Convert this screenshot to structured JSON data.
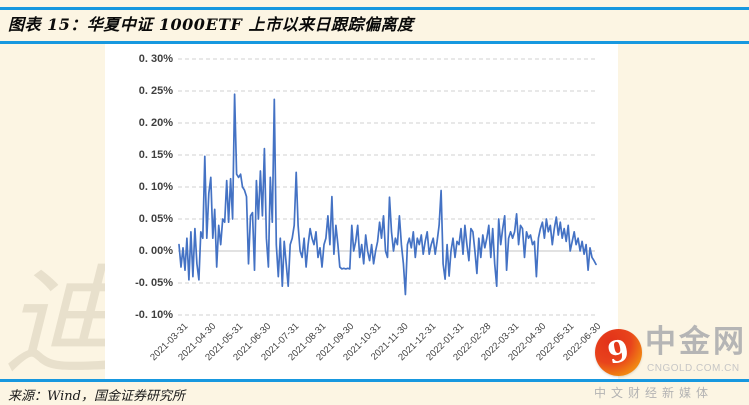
{
  "colors": {
    "accent_blue": "#1798DF",
    "page_background": "#FCF5E3",
    "panel_background": "#FFFFFF",
    "line_color": "#4472C4",
    "grid_color": "#D2D2D2",
    "zero_line_color": "#C6C6C6"
  },
  "header": {
    "title": "图表 15：华夏中证 1000ETF 上市以来日跟踪偏离度"
  },
  "source": {
    "label": "来源：Wind，国金证券研究所"
  },
  "watermark": {
    "text": "迪2022"
  },
  "logo": {
    "symbol": "9",
    "name": "中金网",
    "domain": "CNGOLD.COM.CN",
    "tagline": "中文财经新媒体",
    "red": "#E23219",
    "orange": "#F9A818"
  },
  "chart_data": {
    "type": "line",
    "title": "华夏中证1000ETF上市以来日跟踪偏离度",
    "unit": "%",
    "grid": "dashed horizontal",
    "legend_position": "none",
    "ylim": [
      -0.1,
      0.3
    ],
    "y_ticks": [
      {
        "label": "0. 30%",
        "value": 0.3
      },
      {
        "label": "0. 25%",
        "value": 0.25
      },
      {
        "label": "0. 20%",
        "value": 0.2
      },
      {
        "label": "0. 15%",
        "value": 0.15
      },
      {
        "label": "0. 10%",
        "value": 0.1
      },
      {
        "label": "0. 05%",
        "value": 0.05
      },
      {
        "label": "0. 00%",
        "value": 0.0
      },
      {
        "label": "-0. 05%",
        "value": -0.05
      },
      {
        "label": "-0. 10%",
        "value": -0.1
      }
    ],
    "x_ticks": [
      "2021-03-31",
      "2021-04-30",
      "2021-05-31",
      "2021-06-30",
      "2021-07-31",
      "2021-08-31",
      "2021-09-30",
      "2021-10-31",
      "2021-11-30",
      "2021-12-31",
      "2022-01-31",
      "2022-02-28",
      "2022-03-31",
      "2022-04-30",
      "2022-05-31",
      "2022-06-30"
    ],
    "series": [
      {
        "name": "日跟踪偏离度",
        "color": "#4472C4",
        "values": [
          0.01,
          -0.025,
          0.005,
          -0.03,
          0.02,
          -0.045,
          0.03,
          -0.04,
          0.035,
          -0.02,
          -0.045,
          0.03,
          0.02,
          0.148,
          0.02,
          0.09,
          0.115,
          0.02,
          0.065,
          -0.025,
          0.04,
          0.01,
          0.05,
          0.045,
          0.11,
          0.045,
          0.113,
          0.05,
          0.245,
          0.12,
          0.115,
          0.12,
          0.1,
          0.095,
          0.085,
          -0.02,
          0.055,
          0.06,
          -0.03,
          0.11,
          0.05,
          0.125,
          0.055,
          0.16,
          0.02,
          -0.025,
          0.115,
          0.045,
          0.237,
          0.01,
          -0.04,
          0.02,
          -0.055,
          0.015,
          -0.02,
          -0.055,
          0.01,
          0.02,
          0.04,
          0.123,
          0.04,
          0.0,
          -0.01,
          0.02,
          -0.025,
          0.01,
          0.035,
          0.02,
          0.01,
          0.03,
          -0.01,
          0.005,
          -0.025,
          0.01,
          0.02,
          0.055,
          0.01,
          0.085,
          -0.005,
          0.04,
          0.01,
          -0.025,
          -0.028,
          -0.027,
          -0.028,
          -0.027,
          -0.028,
          0.04,
          0.0,
          0.015,
          0.04,
          -0.01,
          0.01,
          -0.02,
          0.025,
          0.0,
          -0.015,
          0.01,
          -0.02,
          0.0,
          0.015,
          0.045,
          0.02,
          0.055,
          0.0,
          -0.01,
          0.084,
          0.03,
          0.0,
          0.02,
          0.01,
          0.055,
          0.01,
          -0.02,
          -0.068,
          0.01,
          0.02,
          0.005,
          0.03,
          -0.01,
          0.02,
          0.01,
          0.025,
          -0.005,
          0.015,
          0.03,
          -0.005,
          0.01,
          0.02,
          -0.005,
          0.015,
          0.04,
          0.0945,
          -0.02,
          -0.044,
          0.01,
          -0.039,
          0.0,
          0.02,
          -0.01,
          0.015,
          0.01,
          0.035,
          -0.005,
          0.04,
          0.01,
          -0.015,
          0.035,
          0.03,
          0.0,
          -0.035,
          0.02,
          -0.01,
          0.025,
          0.005,
          0.02,
          0.04,
          -0.01,
          0.035,
          -0.02,
          -0.055,
          0.05,
          0.01,
          0.035,
          0.055,
          -0.03,
          0.02,
          0.03,
          0.02,
          0.03,
          0.058,
          0.01,
          0.04,
          0.035,
          -0.01,
          0.03,
          0.02,
          0.025,
          0.01,
          0.015,
          -0.04,
          0.02,
          0.035,
          0.045,
          0.02,
          0.05,
          0.03,
          0.04,
          0.01,
          0.035,
          0.053,
          0.025,
          0.045,
          0.02,
          0.035,
          0.015,
          0.04,
          0.0,
          0.015,
          0.03,
          0.01,
          0.02,
          0.0,
          0.015,
          -0.005,
          0.01,
          -0.03,
          0.005,
          -0.01,
          -0.015,
          -0.021
        ]
      }
    ]
  }
}
